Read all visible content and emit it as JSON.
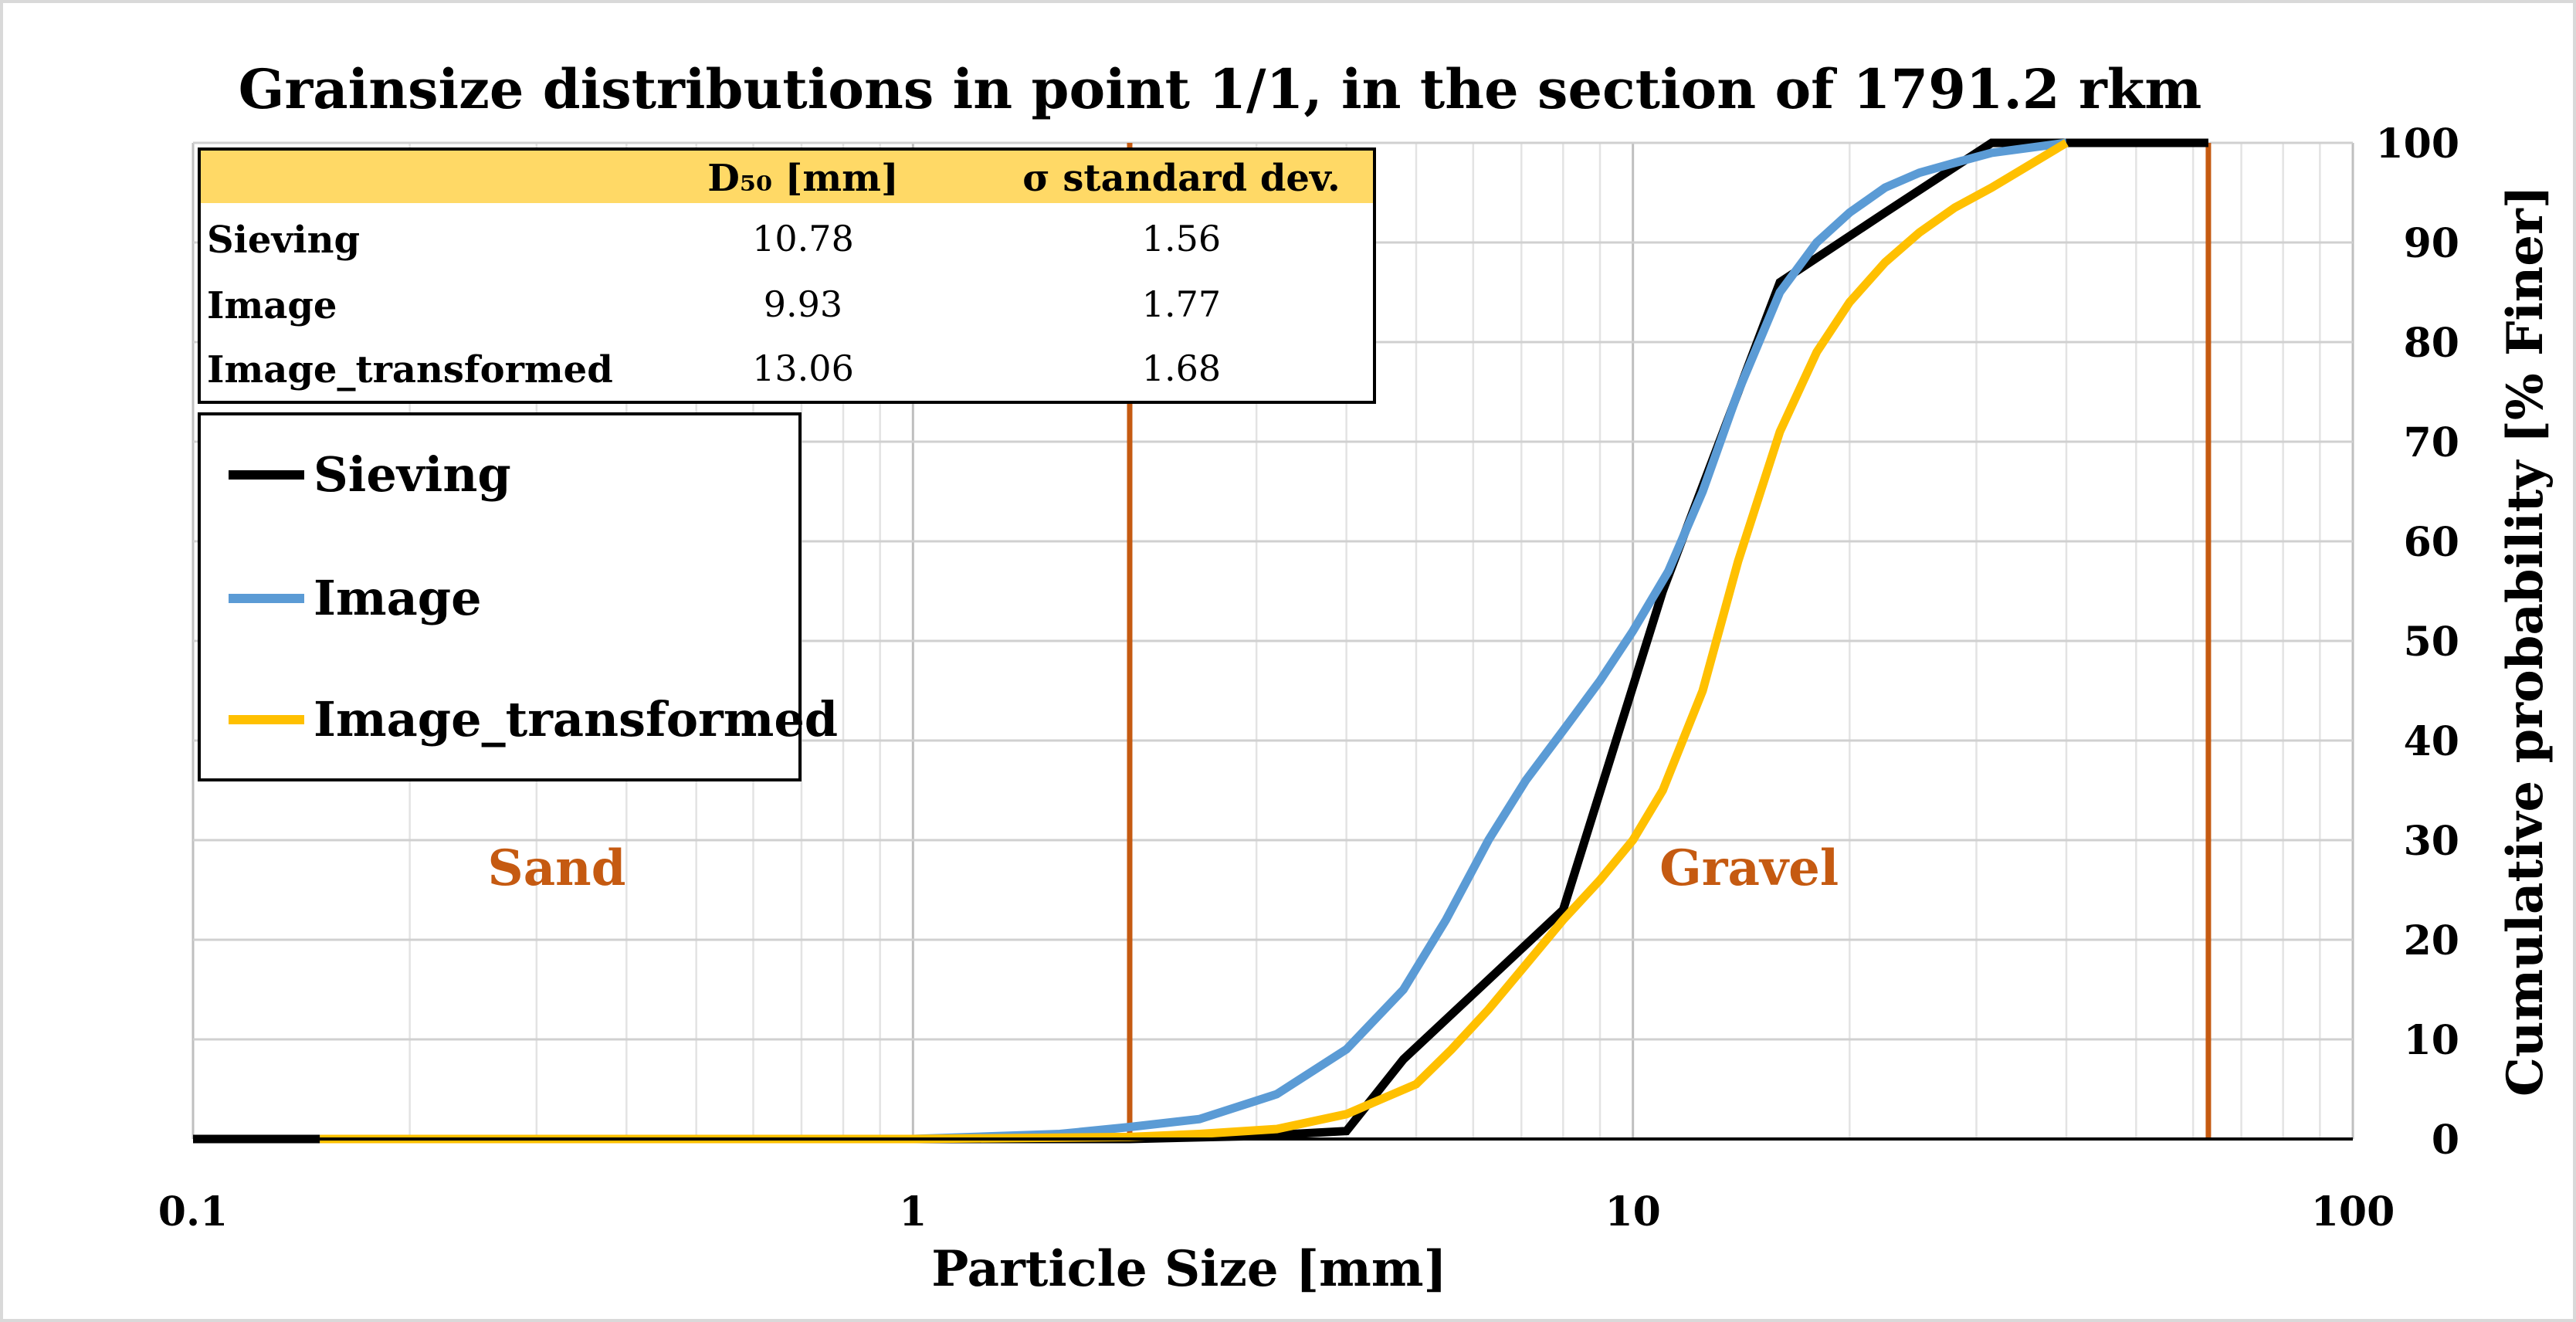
{
  "chart_data": {
    "type": "line",
    "title": "Grainsize distributions in point 1/1, in the section of 1791.2 rkm",
    "xlabel": "Particle Size [mm]",
    "ylabel": "Cumulative probability [% Finer]",
    "xscale": "log",
    "xlim": [
      0.1,
      100
    ],
    "ylim": [
      0,
      100
    ],
    "x_ticks": [
      "0.1",
      "1",
      "10",
      "100"
    ],
    "y_ticks": [
      "0",
      "10",
      "20",
      "30",
      "40",
      "50",
      "60",
      "70",
      "80",
      "90",
      "100"
    ],
    "grid": true,
    "y_axis_position": "right",
    "boundaries": [
      {
        "x": 2,
        "color": "#c55a11"
      },
      {
        "x": 63,
        "color": "#c55a11"
      }
    ],
    "zone_labels": [
      {
        "text": "Sand",
        "x": 0.32,
        "y": 25.5
      },
      {
        "text": "Gravel",
        "x": 14.5,
        "y": 25.5
      }
    ],
    "series": [
      {
        "name": "Sieving",
        "color": "#000000",
        "points": [
          [
            0.1,
            0
          ],
          [
            0.15,
            0
          ],
          [
            1,
            0
          ],
          [
            2,
            0
          ],
          [
            3,
            0.3
          ],
          [
            4,
            0.8
          ],
          [
            4.8,
            8
          ],
          [
            8,
            23
          ],
          [
            11,
            55
          ],
          [
            16,
            86
          ],
          [
            22.4,
            93
          ],
          [
            31.5,
            100
          ],
          [
            45,
            100
          ],
          [
            63,
            100
          ]
        ]
      },
      {
        "name": "Image",
        "color": "#5b9bd5",
        "points": [
          [
            0.15,
            0
          ],
          [
            1,
            0
          ],
          [
            1.6,
            0.5
          ],
          [
            2,
            1.2
          ],
          [
            2.5,
            2
          ],
          [
            3.2,
            4.5
          ],
          [
            4,
            9
          ],
          [
            4.8,
            15
          ],
          [
            5.5,
            22
          ],
          [
            6.3,
            30
          ],
          [
            7.1,
            36
          ],
          [
            8,
            41
          ],
          [
            9,
            46
          ],
          [
            10,
            51
          ],
          [
            11.2,
            57
          ],
          [
            12.5,
            65
          ],
          [
            14,
            75
          ],
          [
            16,
            85
          ],
          [
            18,
            90
          ],
          [
            20,
            93
          ],
          [
            22.4,
            95.5
          ],
          [
            25,
            97
          ],
          [
            28,
            98
          ],
          [
            31.5,
            99
          ],
          [
            40,
            100
          ]
        ]
      },
      {
        "name": "Image_transformed",
        "color": "#ffc000",
        "points": [
          [
            0.15,
            0
          ],
          [
            1,
            0
          ],
          [
            2,
            0.2
          ],
          [
            2.5,
            0.5
          ],
          [
            3.2,
            1
          ],
          [
            4,
            2.5
          ],
          [
            5,
            5.5
          ],
          [
            5.6,
            9
          ],
          [
            6.3,
            13
          ],
          [
            7.1,
            17.5
          ],
          [
            8,
            22
          ],
          [
            9,
            26
          ],
          [
            10,
            30
          ],
          [
            11,
            35
          ],
          [
            12.5,
            45
          ],
          [
            14,
            58
          ],
          [
            16,
            71
          ],
          [
            18,
            79
          ],
          [
            20,
            84
          ],
          [
            22.4,
            88
          ],
          [
            25,
            91
          ],
          [
            28,
            93.5
          ],
          [
            31.5,
            95.5
          ],
          [
            40,
            100
          ]
        ]
      }
    ],
    "legend": {
      "position": "upper-left",
      "items": [
        "Sieving",
        "Image",
        "Image_transformed"
      ]
    },
    "summary_table": {
      "headers": [
        "",
        "D₅₀ [mm]",
        "σ standard dev."
      ],
      "rows": [
        {
          "label": "Sieving",
          "d50": "10.78",
          "sigma": "1.56"
        },
        {
          "label": "Image",
          "d50": "9.93",
          "sigma": "1.77"
        },
        {
          "label": "Image_transformed",
          "d50": "13.06",
          "sigma": "1.68"
        }
      ],
      "header_color": "#ffd966"
    }
  }
}
